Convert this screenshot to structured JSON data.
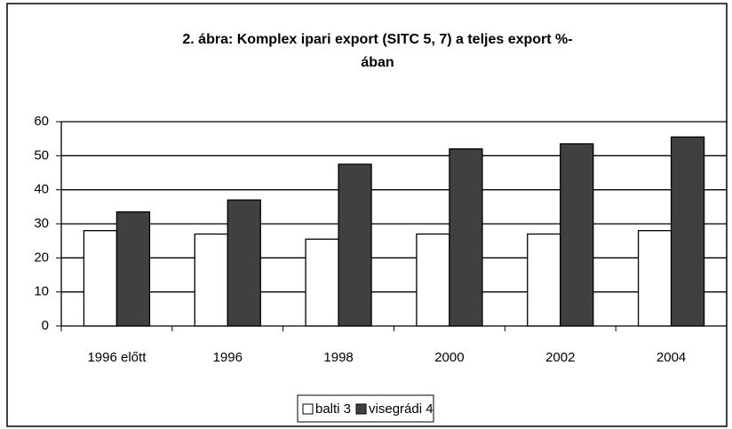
{
  "chart_data": {
    "type": "bar",
    "title": [
      "2. ábra: Komplex ipari export (SITC 5, 7) a teljes export %-",
      "ában"
    ],
    "categories": [
      "1996 előtt",
      "1996",
      "1998",
      "2000",
      "2002",
      "2004"
    ],
    "series": [
      {
        "name": "balti 3",
        "color": "#ffffff",
        "values": [
          28,
          27,
          25.5,
          27,
          27,
          28
        ]
      },
      {
        "name": "visegrádi 4",
        "color": "#404040",
        "values": [
          33.5,
          37,
          47.5,
          52,
          53.5,
          55.5
        ]
      }
    ],
    "ylim": [
      0,
      60
    ],
    "yticks": [
      0,
      10,
      20,
      30,
      40,
      50,
      60
    ],
    "grid": true,
    "legend": "bottom"
  }
}
